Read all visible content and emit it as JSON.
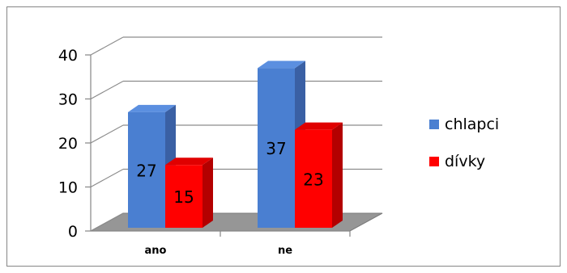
{
  "chart_data": {
    "type": "bar",
    "style": "3d-clustered-column",
    "categories": [
      "ano",
      "ne"
    ],
    "series": [
      {
        "name": "chlapci",
        "values": [
          27,
          37
        ],
        "color": "#4a7fd1",
        "side_color": "#3a60a4",
        "top_color": "#5b8fe0"
      },
      {
        "name": "dívky",
        "values": [
          15,
          23
        ],
        "color": "#ff0000",
        "side_color": "#b30000",
        "top_color": "#e00000"
      }
    ],
    "yticks": [
      0,
      10,
      20,
      30,
      40
    ],
    "ylim": [
      0,
      40
    ],
    "grid": true,
    "data_labels": true,
    "legend_position": "right",
    "title": "",
    "xlabel": "",
    "ylabel": ""
  }
}
